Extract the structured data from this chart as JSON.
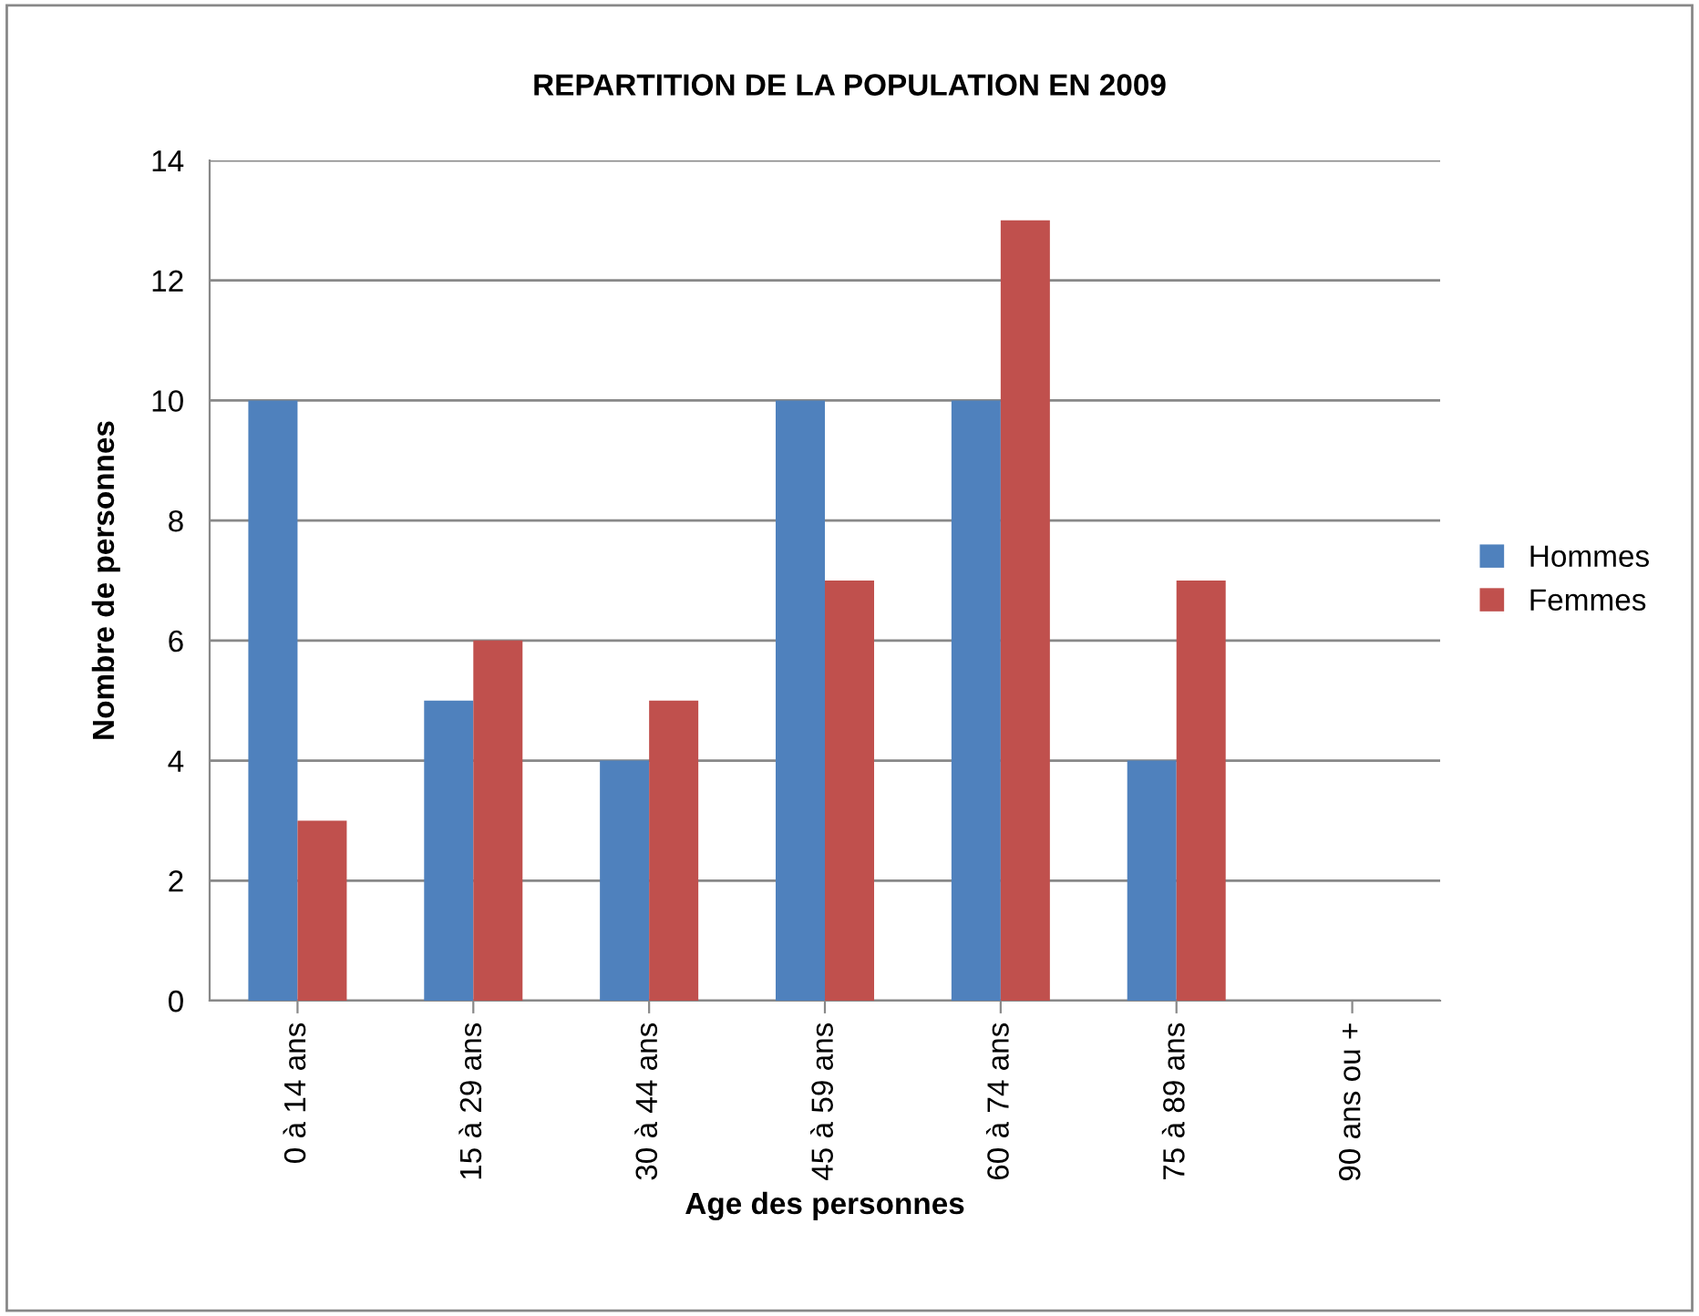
{
  "chart_data": {
    "type": "bar",
    "title": "REPARTITION DE LA POPULATION EN 2009",
    "xlabel": "Age des personnes",
    "ylabel": "Nombre de personnes",
    "categories": [
      "0 à 14 ans",
      "15 à 29 ans",
      "30 à 44 ans",
      "45 à 59 ans",
      "60 à 74 ans",
      "75 à 89 ans",
      "90 ans ou +"
    ],
    "series": [
      {
        "name": "Hommes",
        "color": "#4f81bd",
        "values": [
          10,
          5,
          4,
          10,
          10,
          4,
          0
        ]
      },
      {
        "name": "Femmes",
        "color": "#c0504d",
        "values": [
          3,
          6,
          5,
          7,
          13,
          7,
          0
        ]
      }
    ],
    "ylim": [
      0,
      14
    ],
    "yticks": [
      0,
      2,
      4,
      6,
      8,
      10,
      12,
      14
    ],
    "grid": "y",
    "legend": "right"
  }
}
